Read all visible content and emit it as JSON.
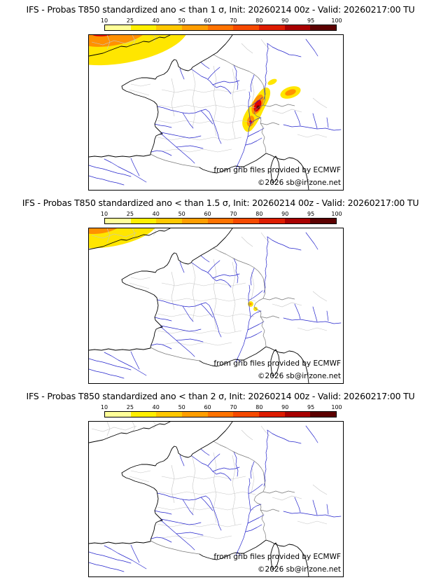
{
  "panels": [
    {
      "title": "IFS - Probas T850  standardized ano < than 1 σ, Init: 20260214 00z - Valid: 20260217:00 TU",
      "threshold_sigma": "1",
      "attribution": "from grib files provided by ECMWF",
      "copyright": "©2026 sb@irizone.net"
    },
    {
      "title": "IFS - Probas T850  standardized ano < than 1.5 σ, Init: 20260214 00z - Valid: 20260217:00 TU",
      "threshold_sigma": "1.5",
      "attribution": "from grib files provided by ECMWF",
      "copyright": "©2026 sb@irizone.net"
    },
    {
      "title": "IFS - Probas T850  standardized ano < than 2 σ, Init: 20260214 00z - Valid: 20260217:00 TU",
      "threshold_sigma": "2",
      "attribution": "from grib files provided by ECMWF",
      "copyright": "©2026 sb@irizone.net"
    }
  ],
  "colorbar": {
    "tick_labels": [
      "10",
      "25",
      "40",
      "50",
      "60",
      "70",
      "80",
      "90",
      "95",
      "100"
    ],
    "segment_colors": [
      "#ffff99",
      "#ffef00",
      "#ffc800",
      "#ff9e00",
      "#ff7300",
      "#f64a00",
      "#dd1c00",
      "#a80000",
      "#5c0000"
    ]
  },
  "map_colors": {
    "coastline": "#000000",
    "country_border": "#787878",
    "department_border": "#c6c6c6",
    "river": "#2424cc",
    "prob_low": "#ffe600",
    "prob_mid": "#ff9100",
    "prob_high": "#e00000",
    "prob_max": "#6e0000"
  },
  "chart_data": [
    {
      "type": "heatmap",
      "title": "Probability T850 standardized anomaly < 1 σ (%)",
      "levels": [
        10,
        25,
        40,
        50,
        60,
        70,
        80,
        90,
        95,
        100
      ],
      "legend_position": "top",
      "regions": [
        {
          "area": "southern England / English Channel (top-left)",
          "peak_value": 70
        },
        {
          "area": "western Alps (southeast France)",
          "peak_value": 95
        },
        {
          "area": "northern Alps / Switzerland-Italy border",
          "peak_value": 40
        },
        {
          "area": "rest of domain",
          "peak_value": 10
        }
      ]
    },
    {
      "type": "heatmap",
      "title": "Probability T850 standardized anomaly < 1.5 σ (%)",
      "levels": [
        10,
        25,
        40,
        50,
        60,
        70,
        80,
        90,
        95,
        100
      ],
      "legend_position": "top",
      "regions": [
        {
          "area": "southern England (top-left)",
          "peak_value": 50
        },
        {
          "area": "western Alps small spots",
          "peak_value": 25
        },
        {
          "area": "rest of domain",
          "peak_value": 10
        }
      ]
    },
    {
      "type": "heatmap",
      "title": "Probability T850 standardized anomaly < 2 σ (%)",
      "levels": [
        10,
        25,
        40,
        50,
        60,
        70,
        80,
        90,
        95,
        100
      ],
      "legend_position": "top",
      "regions": [
        {
          "area": "entire domain",
          "peak_value": 10
        }
      ]
    }
  ]
}
